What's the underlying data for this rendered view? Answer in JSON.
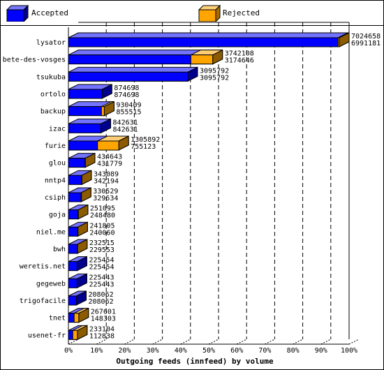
{
  "legend": {
    "accepted": "Accepted",
    "rejected": "Rejected"
  },
  "colors": {
    "accepted": "#0000ff",
    "rejected": "#ffa500"
  },
  "chart_data": {
    "type": "bar",
    "orientation": "horizontal",
    "stacked": false,
    "title": "",
    "xlabel": "Outgoing feeds (innfeed) by volume",
    "ylabel": "",
    "xlim": [
      0,
      100
    ],
    "x_ticks": [
      "0%",
      "10%",
      "20%",
      "30%",
      "40%",
      "50%",
      "60%",
      "70%",
      "80%",
      "90%",
      "100%"
    ],
    "grid": "dashed vertical",
    "legend_position": "top",
    "categories": [
      "lysator",
      "bete-des-vosges",
      "tsukuba",
      "ortolo",
      "backup",
      "izac",
      "furie",
      "glou",
      "nntp4",
      "csiph",
      "goja",
      "niel.me",
      "bwh",
      "weretis.net",
      "gegeweb",
      "trigofacile",
      "tnet",
      "usenet-fr"
    ],
    "series": [
      {
        "name": "Accepted",
        "values": [
          7024658,
          3742108,
          3095792,
          874698,
          930409,
          842631,
          1305892,
          434643,
          343089,
          330529,
          251095,
          241805,
          232515,
          225454,
          225443,
          208062,
          267601,
          233104
        ]
      },
      {
        "name": "Rejected",
        "values": [
          6991181,
          3174646,
          3095792,
          874698,
          855515,
          842631,
          755123,
          431779,
          342194,
          329634,
          248480,
          240060,
          229553,
          225454,
          225443,
          208062,
          148303,
          112838
        ]
      }
    ]
  }
}
